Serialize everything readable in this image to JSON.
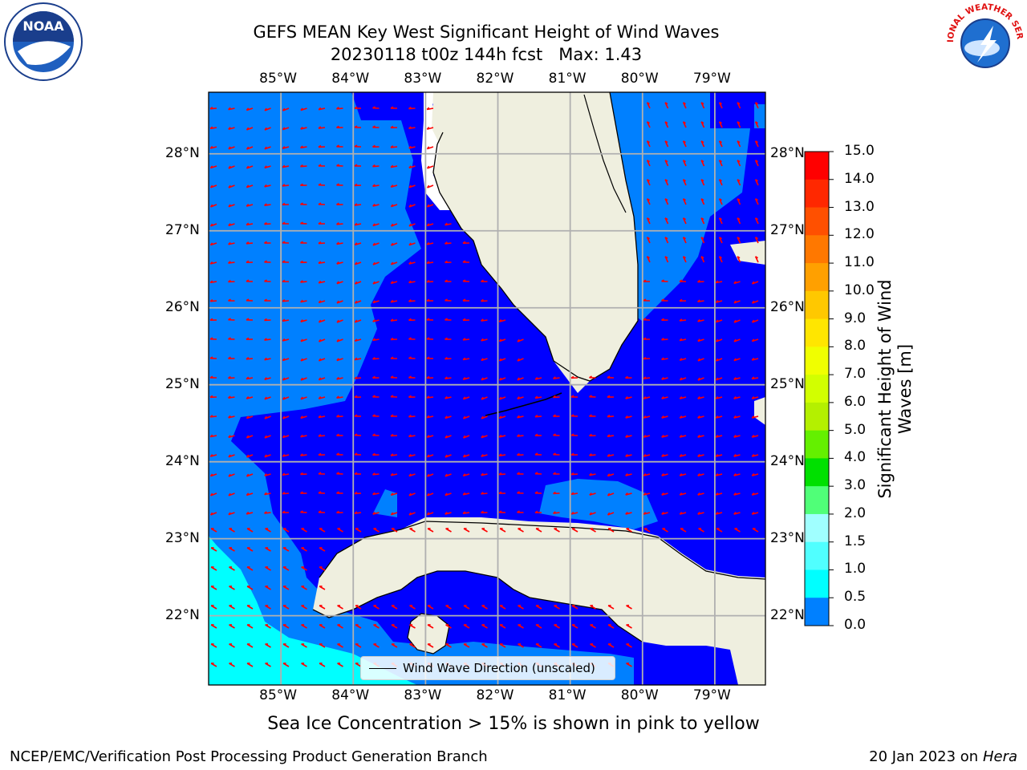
{
  "title": {
    "line1": "GEFS MEAN Key West Significant Height of Wind Waves",
    "line2": "20230118 t00z 144h fcst   Max: 1.43"
  },
  "logos": {
    "left": "NOAA",
    "right": "NATIONAL WEATHER SERVICE"
  },
  "map": {
    "lon_labels": [
      "85°W",
      "84°W",
      "83°W",
      "82°W",
      "81°W",
      "80°W",
      "79°W"
    ],
    "lat_labels": [
      "28°N",
      "27°N",
      "26°N",
      "25°N",
      "24°N",
      "23°N",
      "22°N"
    ],
    "lon_range": [
      -86.0,
      -78.3
    ],
    "lat_range": [
      21.1,
      28.8
    ],
    "colors": {
      "bin_0_0.5": "#0000ff",
      "bin_0.5_1.0": "#0080ff",
      "bin_1.0_1.5": "#00ffff",
      "land": "#efefdf",
      "arrow": "#ff0000",
      "grid": "#b0b0b0"
    },
    "legend_label": "Wind Wave Direction (unscaled)"
  },
  "colorbar": {
    "ticks": [
      "15.0",
      "14.0",
      "13.0",
      "12.0",
      "11.0",
      "10.0",
      "9.0",
      "8.0",
      "7.0",
      "6.0",
      "5.0",
      "4.0",
      "3.0",
      "2.0",
      "1.5",
      "1.0",
      "0.5",
      "0.0"
    ],
    "colors": [
      "#ff0000",
      "#ff2800",
      "#ff5000",
      "#ff7800",
      "#ffa000",
      "#ffc800",
      "#ffe600",
      "#f0ff00",
      "#d2ff00",
      "#b4f000",
      "#64f000",
      "#00e000",
      "#50ff78",
      "#a0ffff",
      "#50ffff",
      "#00ffff",
      "#0080ff",
      "#0000ff"
    ],
    "label": "Significant Height of Wind Waves [m]"
  },
  "notes": {
    "sea_ice": "Sea Ice Concentration > 15% is shown in pink to yellow"
  },
  "footer": {
    "left": "NCEP/EMC/Verification Post Processing Product Generation Branch",
    "right_date": "20 Jan 2023 on ",
    "right_host": "Hera"
  }
}
